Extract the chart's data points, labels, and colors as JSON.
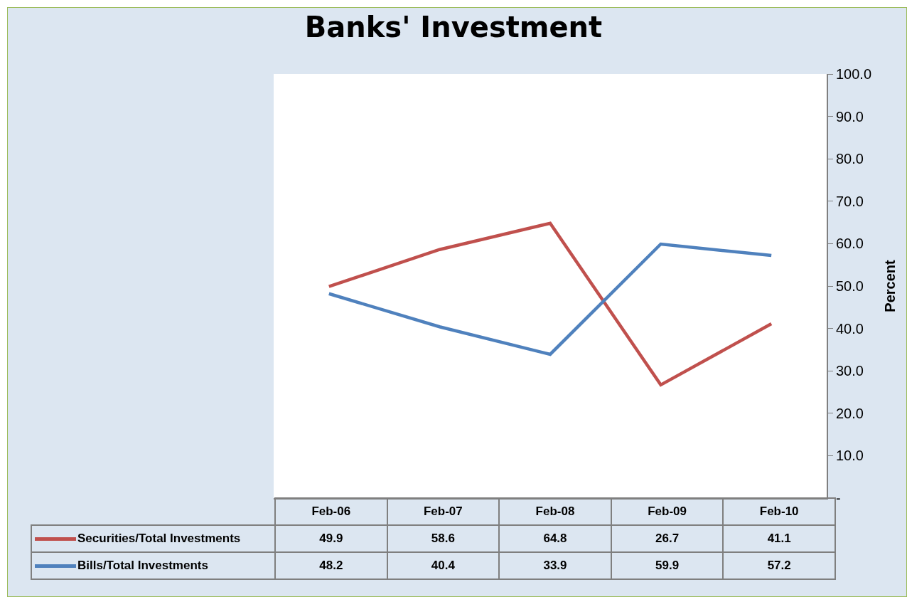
{
  "chart_data": {
    "type": "line",
    "title": "Banks' Investment",
    "ylabel": "Percent",
    "categories": [
      "Feb-06",
      "Feb-07",
      "Feb-08",
      "Feb-09",
      "Feb-10"
    ],
    "series": [
      {
        "name": "Securities/Total Investments",
        "color": "#c0504d",
        "values": [
          49.9,
          58.6,
          64.8,
          26.7,
          41.1
        ]
      },
      {
        "name": "Bills/Total Investments",
        "color": "#4f81bd",
        "values": [
          48.2,
          40.4,
          33.9,
          59.9,
          57.2
        ]
      }
    ],
    "ylim": [
      0,
      100
    ],
    "yticks": [
      {
        "value": 0,
        "label": "-"
      },
      {
        "value": 10,
        "label": "10.0"
      },
      {
        "value": 20,
        "label": "20.0"
      },
      {
        "value": 30,
        "label": "30.0"
      },
      {
        "value": 40,
        "label": "40.0"
      },
      {
        "value": 50,
        "label": "50.0"
      },
      {
        "value": 60,
        "label": "60.0"
      },
      {
        "value": 70,
        "label": "70.0"
      },
      {
        "value": 80,
        "label": "80.0"
      },
      {
        "value": 90,
        "label": "90.0"
      },
      {
        "value": 100,
        "label": "100.0"
      }
    ],
    "data_labels": true,
    "grid": false,
    "legend": "bottom left",
    "marker": "none",
    "line_style": "solid"
  }
}
